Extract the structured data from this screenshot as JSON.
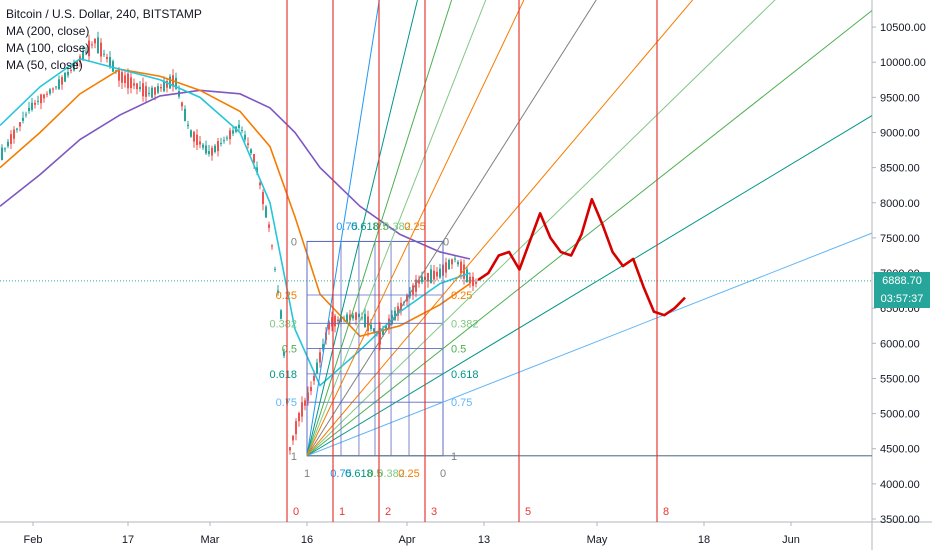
{
  "legend": {
    "title": "Bitcoin / U.S. Dollar, 240, BITSTAMP",
    "ma200": "MA (200, close)",
    "ma100": "MA (100, close)",
    "ma50": "MA (50, close)"
  },
  "price_tags": {
    "last_price": "6888.70",
    "countdown": "03:57:37"
  },
  "colors": {
    "ma200": "#7e57c2",
    "ma100": "#f57c00",
    "ma50": "#26c6da",
    "bull": "#26a69a",
    "bear": "#ef5350",
    "projection": "#d50000",
    "vline": "#e53935"
  },
  "chart_data": {
    "type": "line",
    "title": "Bitcoin / U.S. Dollar, 240, BITSTAMP",
    "y_ticks": [
      "10500.00",
      "10000.00",
      "9500.00",
      "9000.00",
      "8500.00",
      "8000.00",
      "7500.00",
      "7000.00",
      "6500.00",
      "6000.00",
      "5500.00",
      "5000.00",
      "4500.00",
      "4000.00",
      "3500.00"
    ],
    "ylim": [
      3500,
      10800
    ],
    "x_ticks": [
      "Feb",
      "17",
      "Mar",
      "16",
      "Apr",
      "13",
      "May",
      "18",
      "Jun"
    ],
    "last_price": 6888.7,
    "series": [
      {
        "name": "MA (200, close)",
        "values": [
          7950,
          8400,
          8900,
          9250,
          9520,
          9600,
          9550,
          9350,
          9000,
          8500,
          7950,
          7550,
          7300,
          7200
        ]
      },
      {
        "name": "MA (100, close)",
        "values": [
          8500,
          9000,
          9550,
          9900,
          9800,
          9600,
          9300,
          8800,
          7800,
          6700,
          6100,
          6250,
          6550,
          6850
        ]
      },
      {
        "name": "MA (50, close)",
        "values": [
          9100,
          9650,
          10050,
          9900,
          9750,
          9500,
          9000,
          8000,
          6200,
          5400,
          5900,
          6450,
          6850,
          7000
        ]
      }
    ],
    "fib_levels": [
      "0",
      "0.25",
      "0.382",
      "0.5",
      "0.618",
      "0.75",
      "1"
    ],
    "fib_x_labels": [
      "1",
      "0.75",
      "0.618",
      "0.5",
      "0.382",
      "0.25",
      "0"
    ],
    "fib_top_labels": [
      "0.75",
      "0.618",
      "0.5",
      "0.382",
      "0.25"
    ],
    "fan_high": 7450,
    "fan_low": 4400,
    "vertical_markers": [
      "0",
      "1",
      "2",
      "3",
      "5",
      "8"
    ],
    "projection_path": [
      6900,
      7000,
      7250,
      7300,
      7050,
      7450,
      7850,
      7500,
      7300,
      7250,
      7550,
      8050,
      7700,
      7300,
      7100,
      7200,
      6800,
      6450,
      6400,
      6500,
      6650
    ]
  }
}
